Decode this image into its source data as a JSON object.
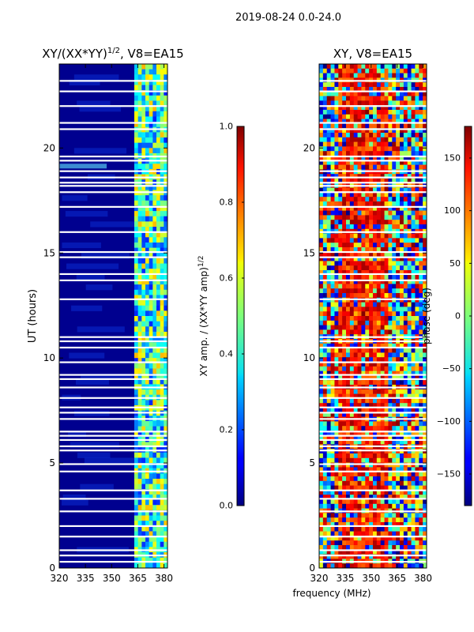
{
  "suptitle": "2019-08-24 0.0-24.0",
  "xlabel_shared": "frequency (MHz)",
  "colors": {
    "band_low": "#00008f",
    "band_mid": "#0a2fd8",
    "spike": "#64e8ff",
    "gap": "#ffffff"
  },
  "chart_data": [
    {
      "type": "heatmap",
      "title": "XY/(XX*YY)",
      "title_exp": "1/2",
      "title_suffix": ", V8=EA15",
      "xlabel": "",
      "ylabel": "UT (hours)",
      "xlim": [
        320,
        382
      ],
      "ylim": [
        0,
        24
      ],
      "xticks": [
        320,
        335,
        350,
        365,
        380
      ],
      "yticks": [
        0,
        5,
        10,
        15,
        20
      ],
      "colorbar": {
        "label": "XY amp. / (XX*YY amp)",
        "label_exp": "1/2",
        "range": [
          0.0,
          1.0
        ],
        "ticks": [
          "0.0",
          "0.2",
          "0.4",
          "0.6",
          "0.8",
          "1.0"
        ],
        "tick_values": [
          0.0,
          0.2,
          0.4,
          0.6,
          0.8,
          1.0
        ]
      },
      "data_gaps_ut": [
        0.3,
        0.6,
        0.85,
        1.5,
        2.0,
        2.7,
        3.3,
        3.7,
        4.6,
        4.95,
        5.6,
        5.8,
        6.1,
        6.3,
        6.5,
        7.1,
        7.4,
        7.65,
        8.1,
        8.6,
        9.0,
        9.2,
        9.8,
        10.5,
        10.8,
        11.0,
        12.8,
        13.7,
        14.0,
        14.8,
        15.05,
        16.0,
        17.2,
        17.9,
        18.2,
        18.35,
        18.6,
        18.9,
        19.4,
        19.6,
        20.9,
        21.2,
        22.0,
        22.7,
        23.2
      ],
      "rfi_band_mhz": [
        363,
        382
      ],
      "notes": "amplitude ~0.05-0.15 below 363 MHz; ~0.2-0.6 above 363 MHz"
    },
    {
      "type": "heatmap",
      "title": "XY, V8=EA15",
      "xlabel": "frequency (MHz)",
      "ylabel": "",
      "xlim": [
        320,
        382
      ],
      "ylim": [
        0,
        24
      ],
      "xticks": [
        320,
        335,
        350,
        365,
        380
      ],
      "yticks": [
        0,
        5,
        10,
        15,
        20
      ],
      "colorbar": {
        "label": "phase (deg)",
        "range": [
          -180,
          180
        ],
        "ticks": [
          "150",
          "100",
          "50",
          "0",
          "−50",
          "−100",
          "−150"
        ],
        "tick_values": [
          150,
          100,
          50,
          0,
          -50,
          -100,
          -150
        ]
      },
      "data_gaps_ut": [
        0.3,
        0.6,
        0.85,
        1.5,
        2.0,
        2.7,
        3.3,
        3.7,
        4.6,
        4.95,
        5.6,
        5.8,
        6.1,
        6.3,
        6.5,
        7.1,
        7.4,
        7.65,
        8.1,
        8.6,
        9.0,
        9.2,
        9.8,
        10.5,
        10.8,
        11.0,
        12.8,
        13.7,
        14.0,
        14.8,
        15.05,
        16.0,
        17.2,
        17.9,
        18.2,
        18.35,
        18.6,
        18.9,
        19.4,
        19.6,
        20.9,
        21.2,
        22.0,
        22.7,
        23.2
      ],
      "notes": "phase mostly ~100-150 deg between 330-360 MHz, noisy elsewhere"
    }
  ]
}
